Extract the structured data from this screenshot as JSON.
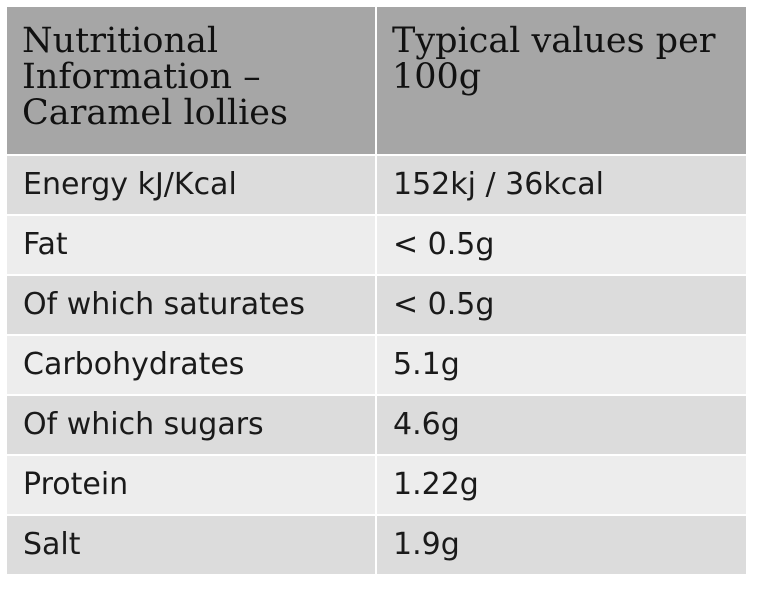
{
  "table": {
    "headers": [
      "Nutritional Information – Caramel lollies",
      "Typical values per 100g"
    ],
    "rows": [
      {
        "nutrient": "Energy kJ/Kcal",
        "value": "152kj / 36kcal"
      },
      {
        "nutrient": "Fat",
        "value": "< 0.5g"
      },
      {
        "nutrient": "Of which saturates",
        "value": "< 0.5g"
      },
      {
        "nutrient": "Carbohydrates",
        "value": "5.1g"
      },
      {
        "nutrient": "Of which sugars",
        "value": "4.6g"
      },
      {
        "nutrient": "Protein",
        "value": "1.22g"
      },
      {
        "nutrient": "Salt",
        "value": "1.9g"
      }
    ]
  },
  "colors": {
    "header_bg": "#a6a6a6",
    "row_bg_dark": "#dcdcdc",
    "row_bg_light": "#ededed"
  }
}
